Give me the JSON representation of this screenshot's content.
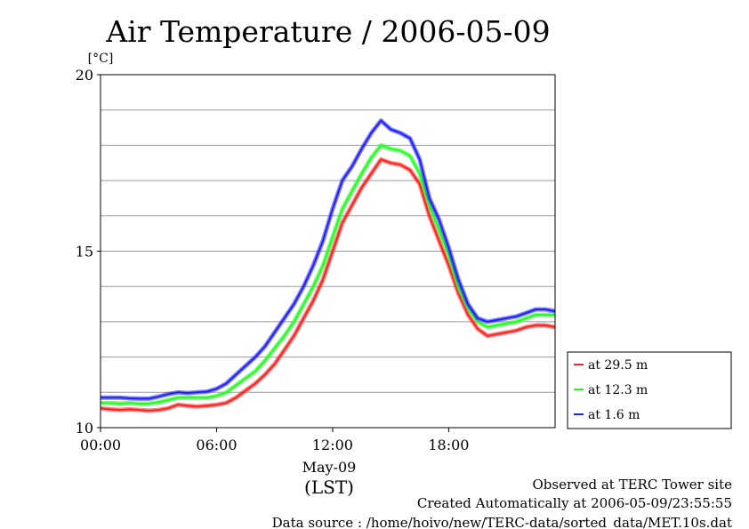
{
  "chart_data": {
    "type": "line",
    "title": "Air Temperature / 2006-05-09",
    "ylabel": "[°C]",
    "xlabel": "(LST)",
    "date_label": "May-09",
    "ylim": [
      10,
      20
    ],
    "y_ticks": [
      "10",
      "15",
      "20"
    ],
    "xlim": [
      0,
      23.5
    ],
    "x_ticks": [
      {
        "value": 0,
        "label": "00:00"
      },
      {
        "value": 6,
        "label": "06:00"
      },
      {
        "value": 12,
        "label": "12:00"
      },
      {
        "value": 18,
        "label": "18:00"
      }
    ],
    "y_grid": [
      11,
      12,
      13,
      14,
      15,
      16,
      17,
      18,
      19
    ],
    "legend_position": "bottom-right outside",
    "x": [
      0,
      0.5,
      1,
      1.5,
      2,
      2.5,
      3,
      3.5,
      4,
      4.5,
      5,
      5.5,
      6,
      6.5,
      7,
      7.5,
      8,
      8.5,
      9,
      9.5,
      10,
      10.5,
      11,
      11.5,
      12,
      12.5,
      13,
      13.5,
      14,
      14.5,
      15,
      15.5,
      16,
      16.5,
      17,
      17.5,
      18,
      18.5,
      19,
      19.5,
      20,
      20.5,
      21,
      21.5,
      22,
      22.5,
      23,
      23.5
    ],
    "series": [
      {
        "name": "at 29.5 m",
        "color": "#ff2020",
        "values": [
          10.55,
          10.52,
          10.5,
          10.52,
          10.5,
          10.48,
          10.5,
          10.55,
          10.65,
          10.62,
          10.6,
          10.62,
          10.65,
          10.7,
          10.85,
          11.05,
          11.25,
          11.5,
          11.8,
          12.2,
          12.6,
          13.1,
          13.6,
          14.2,
          15.0,
          15.8,
          16.3,
          16.8,
          17.2,
          17.6,
          17.5,
          17.45,
          17.3,
          16.9,
          16.0,
          15.3,
          14.6,
          13.8,
          13.2,
          12.8,
          12.6,
          12.65,
          12.7,
          12.75,
          12.85,
          12.9,
          12.9,
          12.85
        ]
      },
      {
        "name": "at 12.3 m",
        "color": "#20ff20",
        "values": [
          10.7,
          10.7,
          10.68,
          10.7,
          10.68,
          10.68,
          10.72,
          10.78,
          10.85,
          10.85,
          10.85,
          10.85,
          10.9,
          11.0,
          11.2,
          11.4,
          11.6,
          11.9,
          12.25,
          12.6,
          13.0,
          13.5,
          14.0,
          14.6,
          15.4,
          16.2,
          16.7,
          17.2,
          17.65,
          18.0,
          17.9,
          17.85,
          17.7,
          17.2,
          16.3,
          15.6,
          14.9,
          14.0,
          13.4,
          13.0,
          12.85,
          12.9,
          12.95,
          13.0,
          13.1,
          13.2,
          13.2,
          13.2
        ]
      },
      {
        "name": "at 1.6 m",
        "color": "#2020ff",
        "values": [
          10.85,
          10.85,
          10.85,
          10.83,
          10.82,
          10.82,
          10.88,
          10.95,
          11.0,
          10.98,
          11.0,
          11.02,
          11.1,
          11.25,
          11.5,
          11.75,
          12.0,
          12.3,
          12.7,
          13.1,
          13.5,
          14.0,
          14.6,
          15.3,
          16.2,
          17.0,
          17.4,
          17.9,
          18.35,
          18.7,
          18.45,
          18.35,
          18.2,
          17.6,
          16.5,
          15.9,
          15.1,
          14.2,
          13.5,
          13.1,
          13.0,
          13.05,
          13.1,
          13.15,
          13.25,
          13.35,
          13.35,
          13.3
        ]
      }
    ]
  },
  "footer": {
    "line1": "Observed at TERC Tower site",
    "line2": "Created Automatically at 2006-05-09/23:55:55",
    "line3": "Data source : /home/hoivo/new/TERC-data/sorted_data/MET.10s.dat"
  }
}
